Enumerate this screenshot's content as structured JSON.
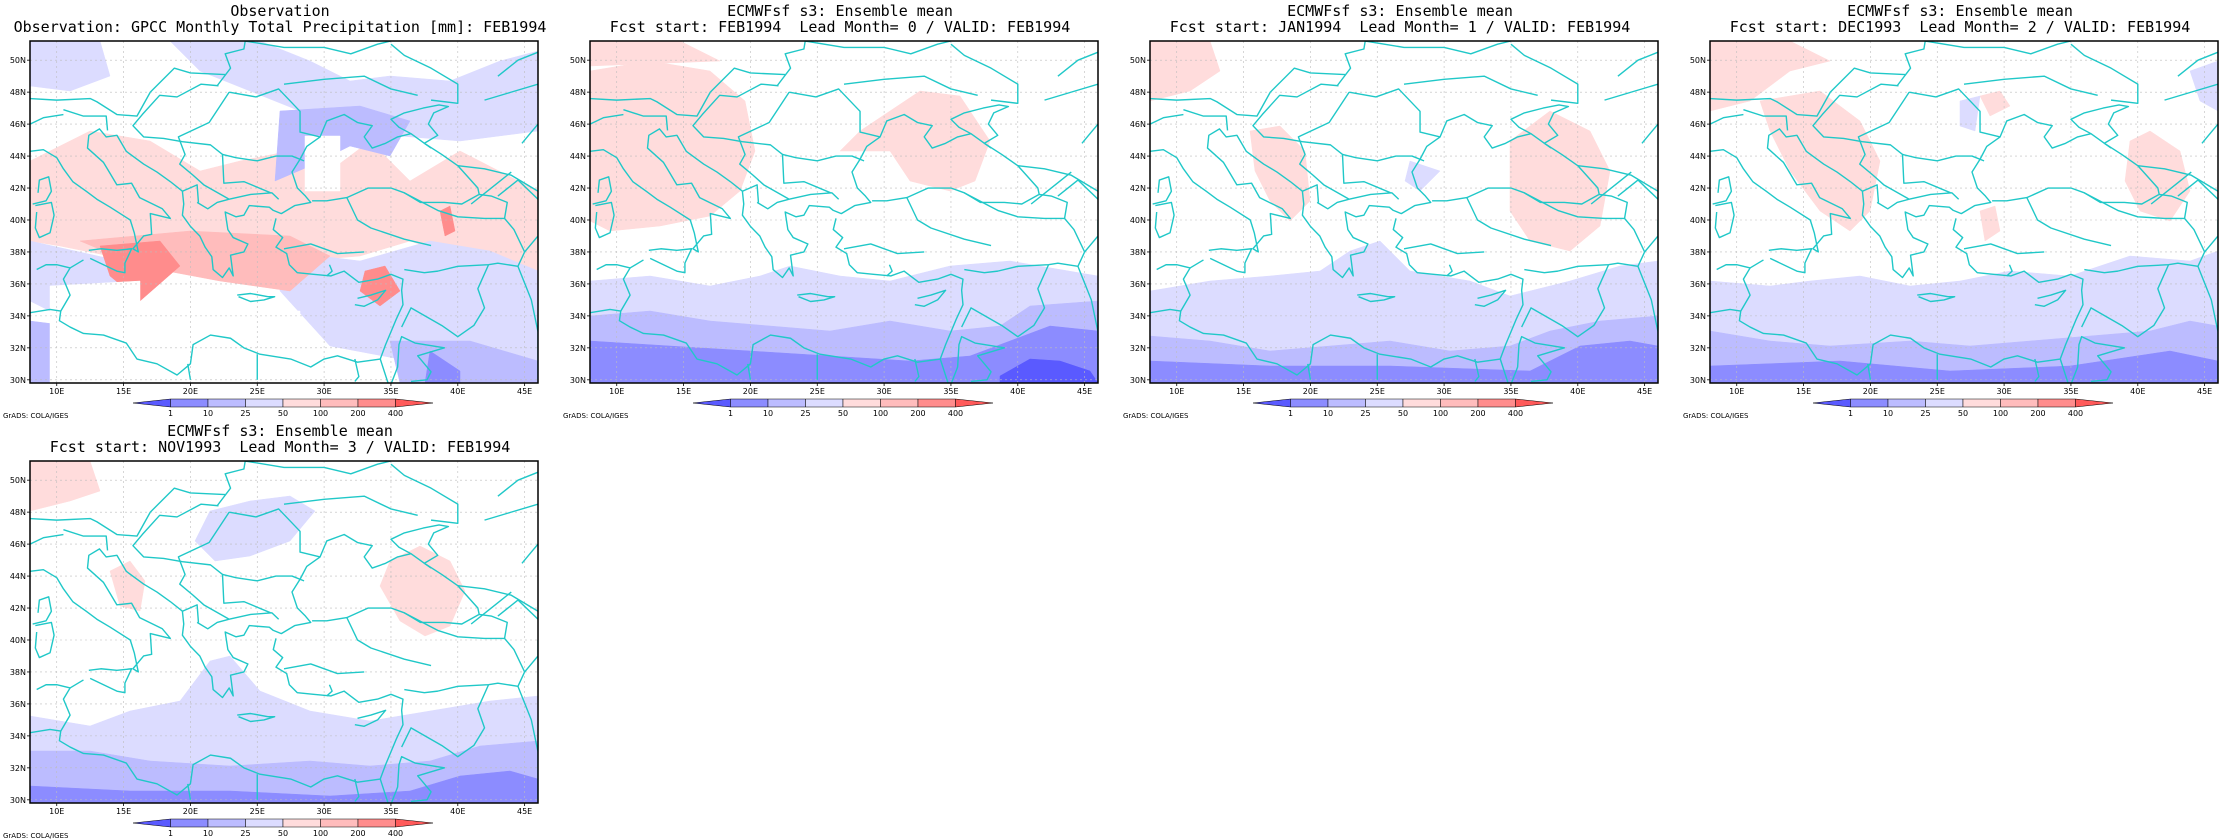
{
  "panels": [
    {
      "id": "obs",
      "title1": "Observation",
      "title2": "Observation: GPCC Monthly Total Precipitation [mm]: FEB1994",
      "pattern": "obs"
    },
    {
      "id": "lead0",
      "title1": "ECMWFsf s3: Ensemble mean",
      "title2": "Fcst start: FEB1994  Lead Month= 0 / VALID: FEB1994",
      "pattern": "lead0"
    },
    {
      "id": "lead1",
      "title1": "ECMWFsf s3: Ensemble mean",
      "title2": "Fcst start: JAN1994  Lead Month= 1 / VALID: FEB1994",
      "pattern": "lead1"
    },
    {
      "id": "lead2",
      "title1": "ECMWFsf s3: Ensemble mean",
      "title2": "Fcst start: DEC1993  Lead Month= 2 / VALID: FEB1994",
      "pattern": "lead2"
    },
    {
      "id": "lead3",
      "title1": "ECMWFsf s3: Ensemble mean",
      "title2": "Fcst start: NOV1993  Lead Month= 3 / VALID: FEB1994",
      "pattern": "lead3"
    }
  ],
  "map": {
    "lon_ticks": [
      "10E",
      "15E",
      "20E",
      "25E",
      "30E",
      "35E",
      "40E",
      "45E"
    ],
    "lat_ticks": [
      "30N",
      "32N",
      "34N",
      "36N",
      "38N",
      "40N",
      "42N",
      "44N",
      "46N",
      "48N",
      "50N"
    ],
    "lon_range": [
      8,
      46
    ],
    "lat_range": [
      29.8,
      51.2
    ],
    "coast_color": "#20c8c8"
  },
  "colorbar": {
    "labels": [
      "1",
      "10",
      "25",
      "50",
      "100",
      "200",
      "400"
    ],
    "colors": [
      "#5a5aff",
      "#8c8cff",
      "#bcbcff",
      "#dcdcff",
      "#ffdcdc",
      "#ffbcbc",
      "#ff8c8c",
      "#ff5a5a"
    ]
  },
  "credit": "GrADS: COLA/IGES"
}
